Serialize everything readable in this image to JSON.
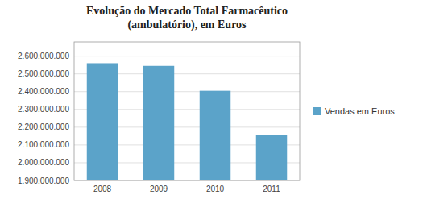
{
  "chart_data": {
    "type": "bar",
    "title": "Evolução do Mercado Total Farmacêutico\n(ambulatório), em Euros",
    "categories": [
      "2008",
      "2009",
      "2010",
      "2011"
    ],
    "series": [
      {
        "name": "Vendas em Euros",
        "color": "#5ba3c9",
        "values": [
          2560000000,
          2545000000,
          2405000000,
          2155000000
        ]
      }
    ],
    "ylim": [
      1900000000,
      2680000000
    ],
    "yticks": [
      {
        "value": 1900000000,
        "label": "1.900.000.000"
      },
      {
        "value": 2000000000,
        "label": "2.000.000.000"
      },
      {
        "value": 2100000000,
        "label": "2.100.000.000"
      },
      {
        "value": 2200000000,
        "label": "2.200.000.000"
      },
      {
        "value": 2300000000,
        "label": "2.300.000.000"
      },
      {
        "value": 2400000000,
        "label": "2.400.000.000"
      },
      {
        "value": 2500000000,
        "label": "2.500.000.000"
      },
      {
        "value": 2600000000,
        "label": "2.600.000.000"
      }
    ],
    "grid": true,
    "legend": "right"
  }
}
